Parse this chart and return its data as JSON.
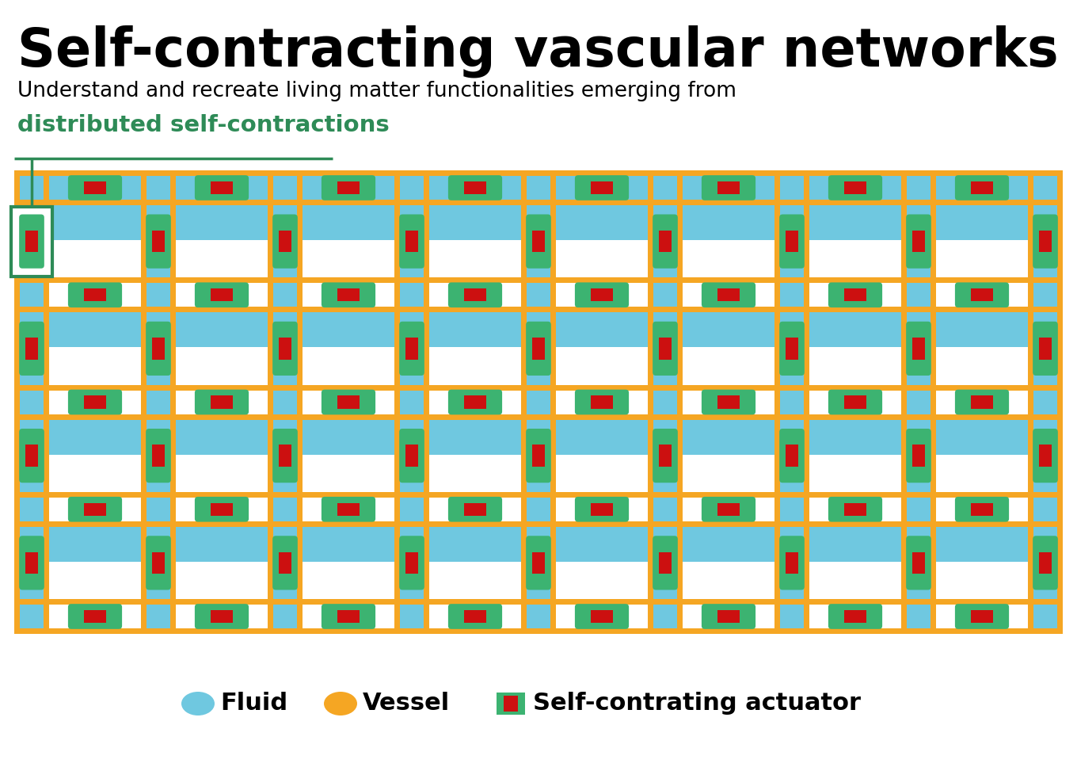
{
  "title": "Self-contracting vascular networks",
  "subtitle": "Understand and recreate living matter functionalities emerging from",
  "subtitle_green": "distributed self-contractions",
  "bg_color": "#FFFFFF",
  "fluid_color": "#6FC8E0",
  "vessel_color": "#F5A623",
  "actuator_green": "#3CB371",
  "actuator_red": "#CC1010",
  "callout_color": "#2E8B57",
  "legend_fluid_color": "#6FC8E0",
  "legend_vessel_color": "#F5A623",
  "legend_green_color": "#3CB371",
  "legend_red_color": "#CC1010"
}
